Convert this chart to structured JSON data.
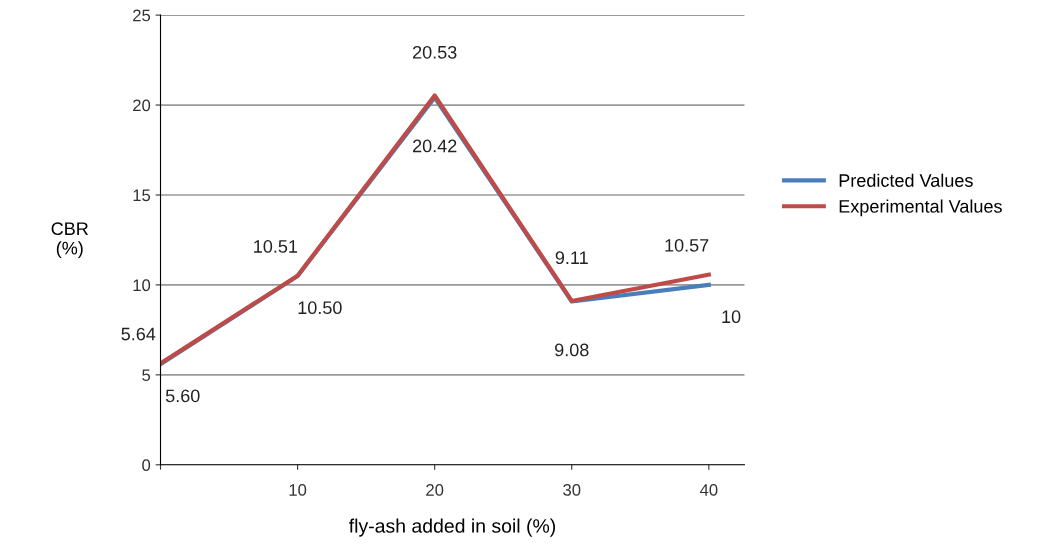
{
  "chart_data": {
    "type": "line",
    "xlabel": "fly-ash added in soil (%)",
    "ylabel": "CBR\n(%)",
    "x": [
      0,
      10,
      20,
      30,
      40
    ],
    "xlim": [
      0,
      42.6
    ],
    "xticks": [
      {
        "value": 0,
        "label": null
      },
      10,
      20,
      30,
      40
    ],
    "ylim": [
      0,
      25
    ],
    "yticks": [
      0,
      5,
      10,
      15,
      20,
      25
    ],
    "grid": "y",
    "legend": "right",
    "marker": "none",
    "line_style": "solid",
    "series": [
      {
        "name": "Predicted Values",
        "color": "#4a7ebb",
        "values": [
          5.6,
          10.5,
          20.42,
          9.08,
          10
        ],
        "value_labels": [
          "5.60",
          "10.50",
          "20.42",
          "9.08",
          "10"
        ]
      },
      {
        "name": "Experimental Values",
        "color": "#be4b48",
        "values": [
          5.64,
          10.51,
          20.53,
          9.11,
          10.57
        ],
        "value_labels": [
          "5.64",
          "10.51",
          "20.53",
          "9.11",
          "10.57"
        ]
      }
    ]
  }
}
